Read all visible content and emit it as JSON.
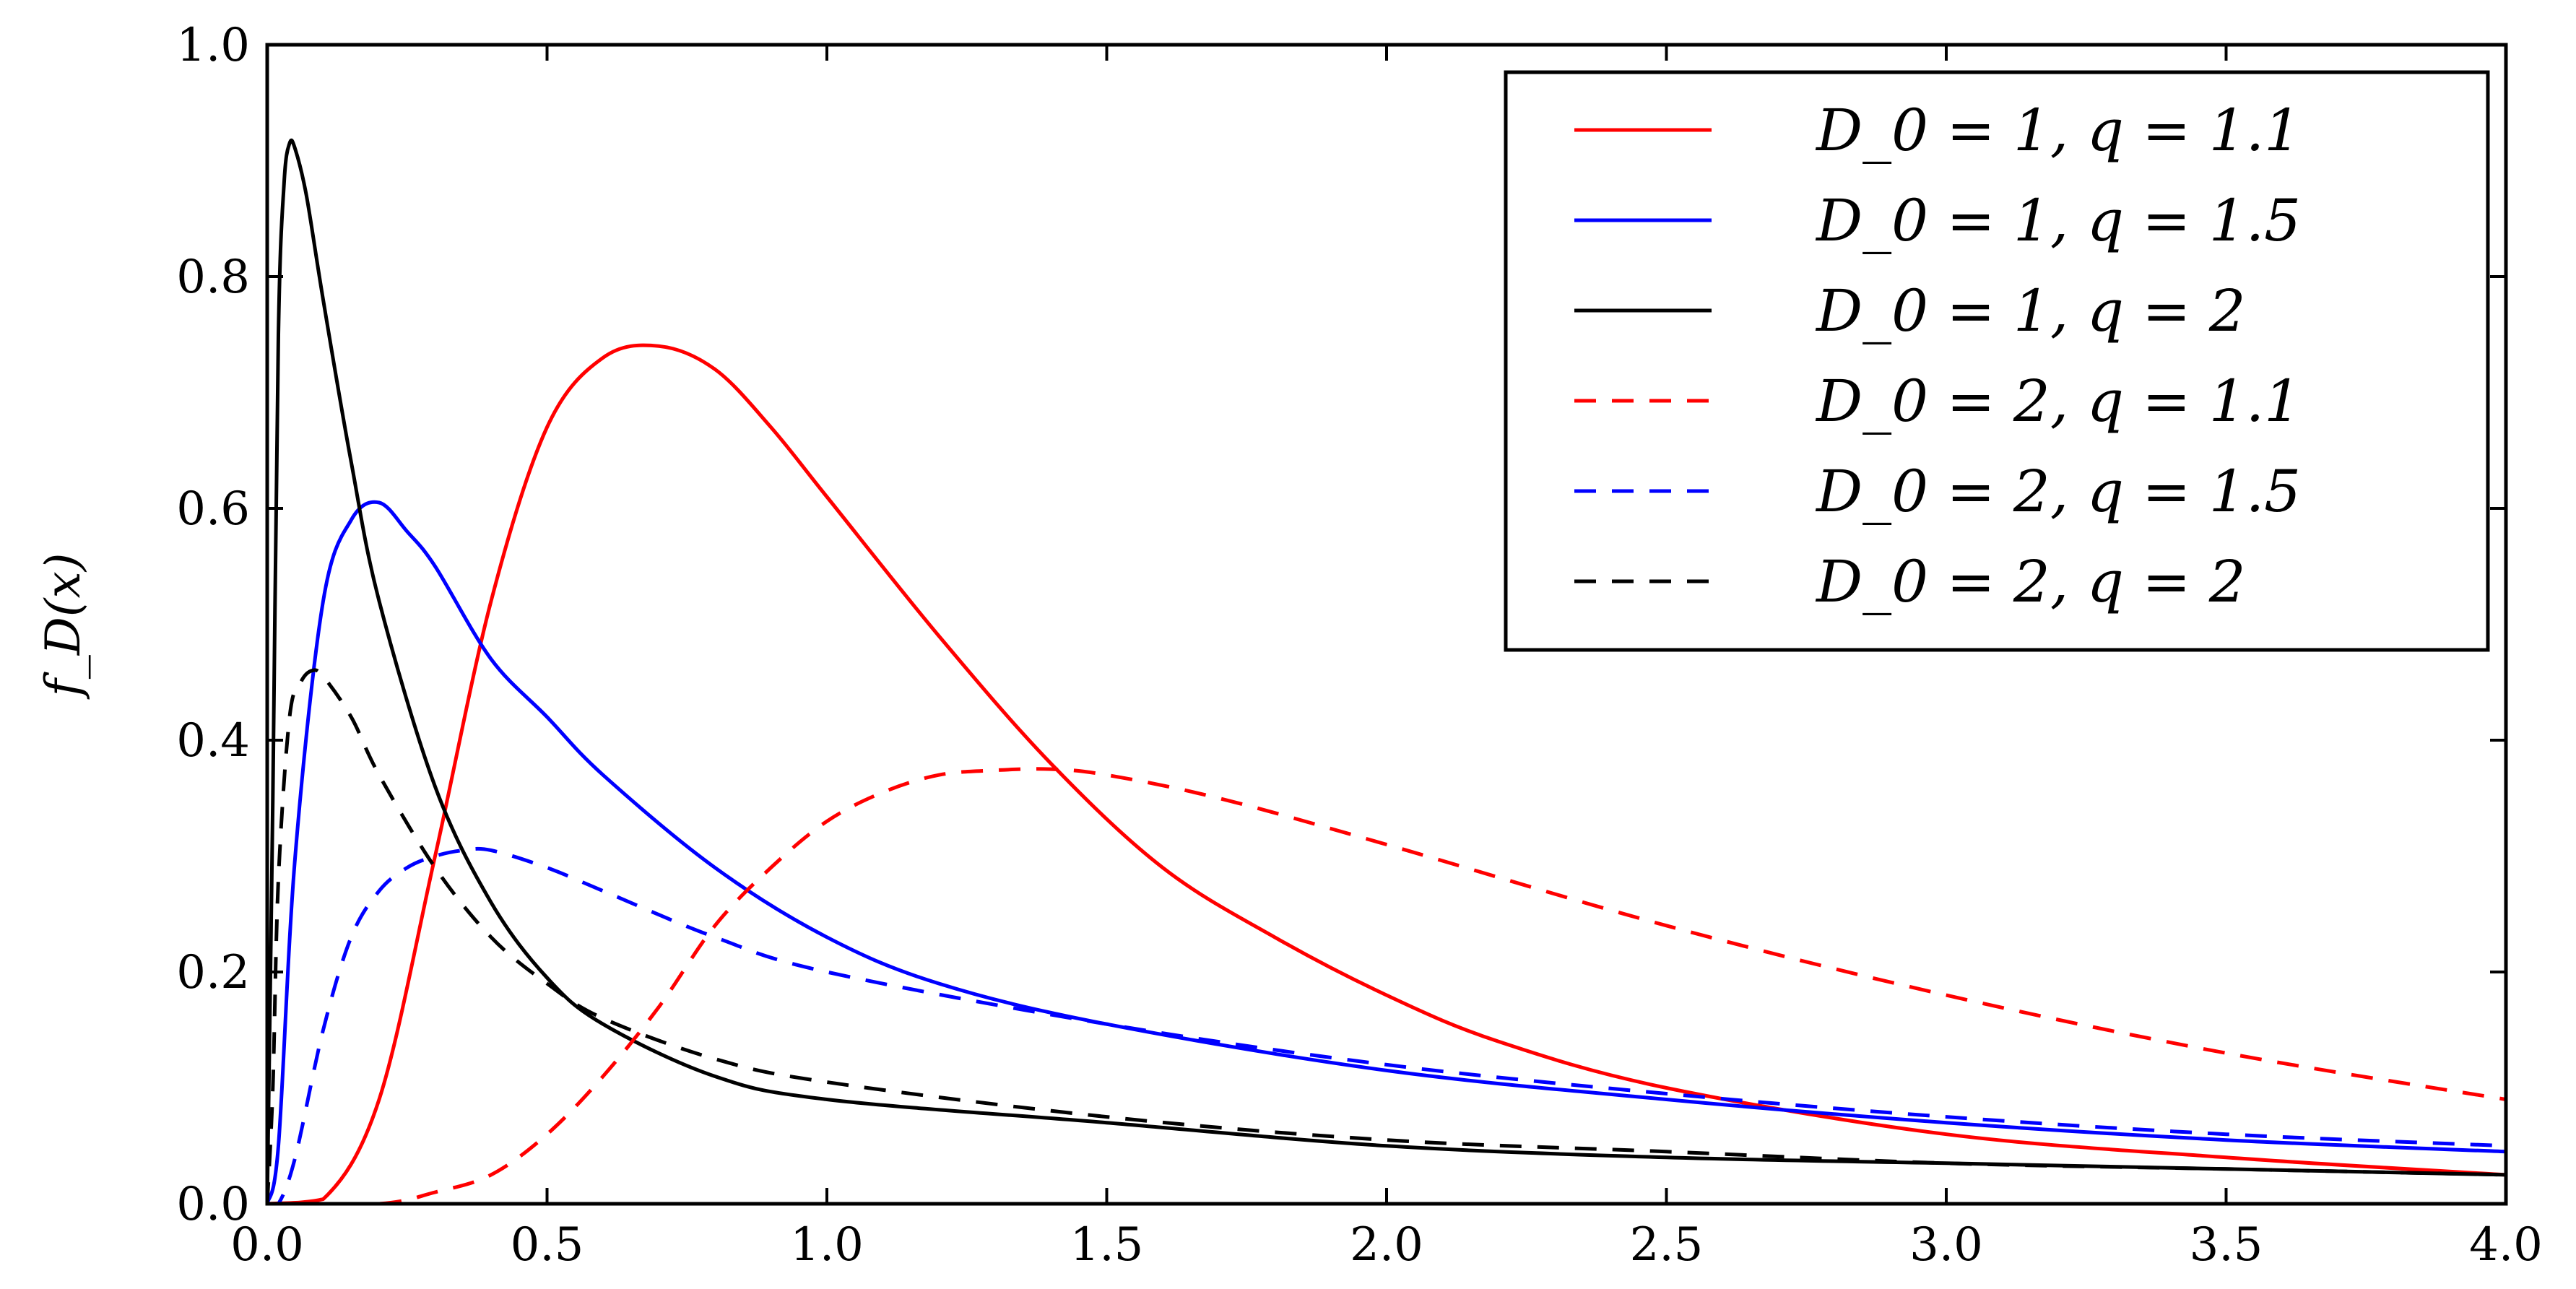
{
  "chart_data": {
    "type": "line",
    "title": "",
    "xlabel": "",
    "ylabel": "f_D(x)",
    "xlim": [
      0.0,
      4.0
    ],
    "ylim": [
      0.0,
      1.0
    ],
    "xticks": [
      "0.0",
      "0.5",
      "1.0",
      "1.5",
      "2.0",
      "2.5",
      "3.0",
      "3.5",
      "4.0"
    ],
    "yticks": [
      "0.0",
      "0.2",
      "0.4",
      "0.6",
      "0.8",
      "1.0"
    ],
    "grid": false,
    "legend_position": "top-right",
    "series": [
      {
        "name": "D_0 = 1, q = 1.1",
        "color": "#ff0000",
        "dash": "solid",
        "x": [
          0.0,
          0.1,
          0.2,
          0.3,
          0.4,
          0.5,
          0.6,
          0.7,
          0.8,
          0.9,
          1.0,
          1.2,
          1.4,
          1.6,
          1.8,
          2.0,
          2.2,
          2.5,
          3.0,
          3.5,
          4.0
        ],
        "y": [
          0.0,
          0.004,
          0.09,
          0.3,
          0.52,
          0.67,
          0.73,
          0.74,
          0.72,
          0.67,
          0.61,
          0.49,
          0.38,
          0.29,
          0.23,
          0.18,
          0.14,
          0.1,
          0.06,
          0.04,
          0.025
        ]
      },
      {
        "name": "D_0 = 1, q = 1.5",
        "color": "#0000ff",
        "dash": "solid",
        "x": [
          0.0,
          0.02,
          0.05,
          0.1,
          0.15,
          0.2,
          0.25,
          0.3,
          0.4,
          0.5,
          0.6,
          0.8,
          1.0,
          1.2,
          1.5,
          2.0,
          2.5,
          3.0,
          3.5,
          4.0
        ],
        "y": [
          0.0,
          0.05,
          0.3,
          0.52,
          0.59,
          0.605,
          0.58,
          0.55,
          0.47,
          0.42,
          0.37,
          0.29,
          0.23,
          0.19,
          0.155,
          0.115,
          0.09,
          0.07,
          0.055,
          0.045
        ]
      },
      {
        "name": "D_0 = 1, q = 2",
        "color": "#000000",
        "dash": "solid",
        "x": [
          0.0,
          0.01,
          0.02,
          0.03,
          0.04,
          0.05,
          0.07,
          0.1,
          0.15,
          0.2,
          0.3,
          0.4,
          0.5,
          0.6,
          0.8,
          1.0,
          1.5,
          2.0,
          2.5,
          3.0,
          3.5,
          4.0
        ],
        "y": [
          0.0,
          0.35,
          0.75,
          0.88,
          0.915,
          0.91,
          0.87,
          0.78,
          0.64,
          0.52,
          0.36,
          0.26,
          0.195,
          0.155,
          0.11,
          0.09,
          0.07,
          0.05,
          0.04,
          0.035,
          0.03,
          0.025
        ]
      },
      {
        "name": "D_0 = 2, q = 1.1",
        "color": "#ff0000",
        "dash": "dashed",
        "x": [
          0.0,
          0.2,
          0.3,
          0.4,
          0.5,
          0.6,
          0.7,
          0.8,
          0.9,
          1.0,
          1.1,
          1.2,
          1.3,
          1.4,
          1.5,
          1.7,
          2.0,
          2.5,
          3.0,
          3.5,
          4.0
        ],
        "y": [
          0.0,
          0.0,
          0.01,
          0.025,
          0.06,
          0.11,
          0.17,
          0.24,
          0.29,
          0.33,
          0.355,
          0.37,
          0.374,
          0.375,
          0.37,
          0.35,
          0.31,
          0.24,
          0.18,
          0.13,
          0.09
        ]
      },
      {
        "name": "D_0 = 2, q = 1.5",
        "color": "#0000ff",
        "dash": "dashed",
        "x": [
          0.0,
          0.02,
          0.05,
          0.1,
          0.15,
          0.2,
          0.25,
          0.3,
          0.35,
          0.4,
          0.5,
          0.6,
          0.8,
          1.0,
          1.5,
          2.0,
          2.5,
          3.0,
          3.5,
          4.0
        ],
        "y": [
          0.0,
          0.0,
          0.04,
          0.15,
          0.23,
          0.27,
          0.29,
          0.3,
          0.305,
          0.305,
          0.29,
          0.27,
          0.23,
          0.2,
          0.155,
          0.12,
          0.095,
          0.075,
          0.06,
          0.05
        ]
      },
      {
        "name": "D_0 = 2, q = 2",
        "color": "#000000",
        "dash": "dashed",
        "x": [
          0.0,
          0.01,
          0.02,
          0.04,
          0.06,
          0.08,
          0.1,
          0.15,
          0.2,
          0.3,
          0.4,
          0.5,
          0.6,
          0.8,
          1.0,
          1.5,
          2.0,
          2.5,
          3.0,
          3.5,
          4.0
        ],
        "y": [
          0.0,
          0.1,
          0.28,
          0.42,
          0.45,
          0.46,
          0.455,
          0.42,
          0.37,
          0.29,
          0.23,
          0.19,
          0.16,
          0.125,
          0.105,
          0.075,
          0.055,
          0.045,
          0.035,
          0.03,
          0.025
        ]
      }
    ]
  }
}
